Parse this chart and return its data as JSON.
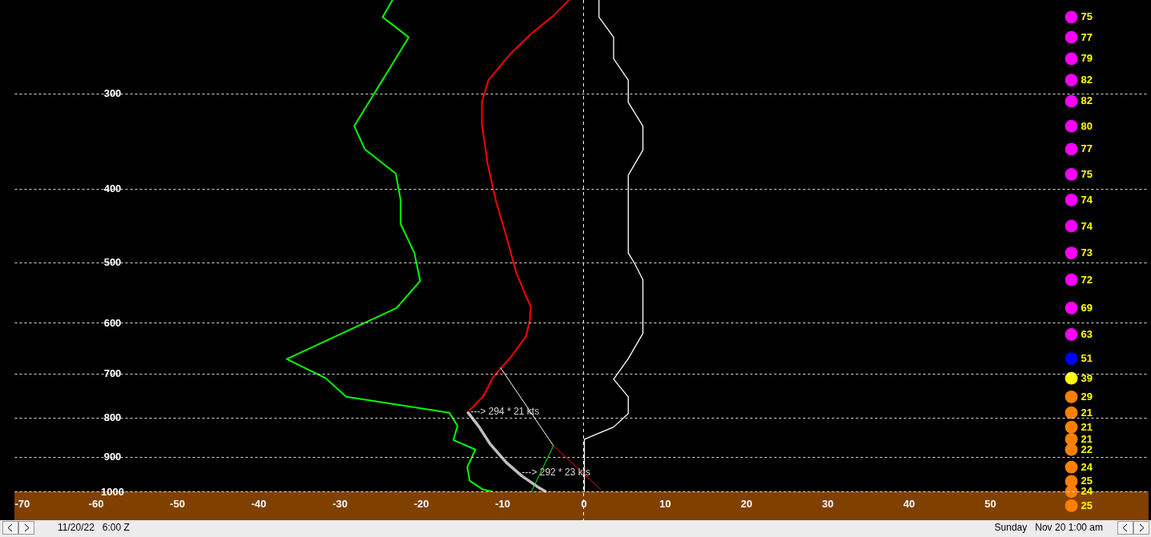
{
  "chart_data": {
    "type": "line",
    "xlim": [
      -70,
      69.5
    ],
    "ylim": [
      1091,
      226
    ],
    "log": "y",
    "xticks": [
      -70,
      -60,
      -50,
      -40,
      -30,
      -20,
      -10,
      0,
      10,
      20,
      30,
      40,
      50
    ],
    "yticks": [
      300,
      400,
      500,
      600,
      700,
      800,
      900,
      1000
    ],
    "grid": "y",
    "series": [
      {
        "color": "#ff0000",
        "x": [
          -1.8,
          -3.7,
          -6.4,
          -9.0,
          -11.7,
          -12.5,
          -12.5,
          -11.8,
          -10.8,
          -9.5,
          -8.3,
          -7.1,
          -6.5,
          -6.6,
          -7.1,
          -8.9,
          -10.6,
          -11.2,
          -12.3,
          -14.0
        ],
        "values": [
          226,
          237,
          250,
          266,
          288,
          308,
          329,
          371,
          414,
          462,
          515,
          553,
          572,
          595,
          626,
          665,
          697,
          710,
          749,
          782
        ]
      },
      {
        "color": "#00ff00",
        "x": [
          -23.5,
          -24.7,
          -21.5,
          -28.2,
          -26.9,
          -23.1,
          -22.5,
          -22.5,
          -20.8,
          -20.1,
          -23.0,
          -36.5,
          -31.7,
          -29.2,
          -16.5,
          -15.5,
          -16.0,
          -13.3,
          -14.3,
          -14.0,
          -12.4,
          -11.3
        ],
        "values": [
          226,
          238,
          253,
          331,
          355,
          382,
          414,
          445,
          486,
          529,
          574,
          670,
          710,
          751,
          788,
          820,
          856,
          881,
          929,
          968,
          994,
          1000
        ]
      },
      {
        "color": "#ffffff",
        "x": [
          1.9,
          1.9,
          3.7,
          3.7,
          5.5,
          5.5,
          7.3,
          7.3,
          5.5,
          5.5,
          6.3,
          7.3,
          7.3,
          5.5,
          3.7,
          5.5,
          5.5,
          3.7,
          0.1,
          0.1
        ],
        "values": [
          226,
          238,
          253,
          270,
          288,
          308,
          331,
          356,
          384,
          486,
          502,
          527,
          620,
          669,
          712,
          751,
          790,
          823,
          854,
          1000
        ]
      },
      {
        "color": "#c0c0c0",
        "x": [
          -14.2,
          -12.9,
          -11.5,
          -9.5,
          -7.6,
          -5.6,
          -4.7
        ],
        "values": [
          788,
          821,
          866,
          916,
          954,
          987,
          1000
        ]
      },
      {
        "color": "#ffffff",
        "x": [
          -10.2,
          -3.7
        ],
        "values": [
          688,
          871
        ]
      },
      {
        "color": "#ff0000",
        "x": [
          -3.7,
          2.1
        ],
        "values": [
          871,
          994
        ]
      },
      {
        "color": "#00ff00",
        "x": [
          -3.7,
          -6.4
        ],
        "values": [
          871,
          1000
        ]
      },
      {
        "type": "scatter",
        "marker": "circle",
        "x": [
          60,
          60,
          60,
          60,
          60,
          60,
          60,
          60,
          60,
          60,
          60,
          60,
          60,
          60,
          60,
          60,
          60,
          60,
          60,
          60,
          60,
          60,
          60,
          60,
          60
        ],
        "values": [
          238,
          253,
          270,
          288,
          307,
          331,
          355,
          383,
          414,
          448,
          486,
          527,
          574,
          622,
          669,
          710,
          751,
          788,
          823,
          854,
          881,
          929,
          970,
          1000,
          1044
        ],
        "colors": [
          "#ff00ff",
          "#ff00ff",
          "#ff00ff",
          "#ff00ff",
          "#ff00ff",
          "#ff00ff",
          "#ff00ff",
          "#ff00ff",
          "#ff00ff",
          "#ff00ff",
          "#ff00ff",
          "#ff00ff",
          "#ff00ff",
          "#ff00ff",
          "#0000ff",
          "#ffff00",
          "#ff8000",
          "#ff8000",
          "#ff8000",
          "#ff8000",
          "#ff8000",
          "#ff8000",
          "#ff8000",
          "#ff8000",
          "#ff8000"
        ]
      }
    ],
    "ref_lines": [
      {
        "axis": "x",
        "value": 0,
        "color": "#ffffff",
        "line_style": "dashed"
      }
    ],
    "bands": [
      {
        "axis": "y",
        "from": 1000,
        "to": 1091,
        "color": "#804000"
      }
    ],
    "annotations": [
      {
        "text": "---> 294 * 21 kts",
        "x": -13.9,
        "y": 788
      },
      {
        "text": "---> 292 * 23 kts",
        "x": -7.6,
        "y": 947
      },
      {
        "text": "75",
        "x": 60,
        "y": 238
      },
      {
        "text": "77",
        "x": 60,
        "y": 253
      },
      {
        "text": "79",
        "x": 60,
        "y": 270
      },
      {
        "text": "82",
        "x": 60,
        "y": 288
      },
      {
        "text": "82",
        "x": 60,
        "y": 307
      },
      {
        "text": "80",
        "x": 60,
        "y": 331
      },
      {
        "text": "77",
        "x": 60,
        "y": 355
      },
      {
        "text": "75",
        "x": 60,
        "y": 383
      },
      {
        "text": "74",
        "x": 60,
        "y": 414
      },
      {
        "text": "74",
        "x": 60,
        "y": 448
      },
      {
        "text": "73",
        "x": 60,
        "y": 486
      },
      {
        "text": "72",
        "x": 60,
        "y": 527
      },
      {
        "text": "69",
        "x": 60,
        "y": 574
      },
      {
        "text": "63",
        "x": 60,
        "y": 622
      },
      {
        "text": "51",
        "x": 60,
        "y": 669
      },
      {
        "text": "39",
        "x": 60,
        "y": 710
      },
      {
        "text": "29",
        "x": 60,
        "y": 751
      },
      {
        "text": "21",
        "x": 60,
        "y": 788
      },
      {
        "text": "21",
        "x": 60,
        "y": 823
      },
      {
        "text": "21",
        "x": 60,
        "y": 854
      },
      {
        "text": "22",
        "x": 60,
        "y": 881
      },
      {
        "text": "24",
        "x": 60,
        "y": 929
      },
      {
        "text": "25",
        "x": 60,
        "y": 970
      },
      {
        "text": "24",
        "x": 60,
        "y": 1000
      },
      {
        "text": "25",
        "x": 60,
        "y": 1044
      },
      "11/20/22   6:00 Z",
      "Sunday   Nov 20 1:00 am"
    ]
  }
}
